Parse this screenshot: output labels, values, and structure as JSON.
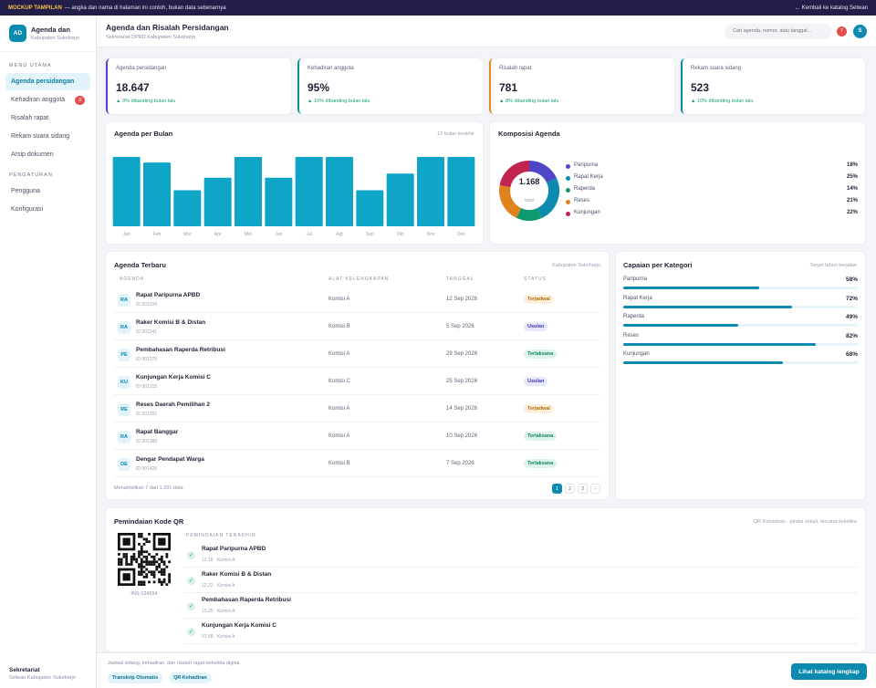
{
  "topbar": {
    "tag": "MOCKUP TAMPILAN",
    "text": "— angka dan nama di halaman ini contoh, bukan data sebenarnya",
    "back": "← Kembali ke katalog Setwan"
  },
  "brand": {
    "logo": "AD",
    "title": "Agenda dan",
    "subtitle": "Kabupaten Sukoharjo"
  },
  "sidebar": {
    "section_main": "MENU UTAMA",
    "items": [
      {
        "label": "Agenda persidangan",
        "active": true
      },
      {
        "label": "Kehadiran anggota",
        "badge": "3"
      },
      {
        "label": "Risalah rapat"
      },
      {
        "label": "Rekam suara sidang"
      },
      {
        "label": "Arsip dokumen"
      }
    ],
    "section_settings": "PENGATURAN",
    "settings": [
      {
        "label": "Pengguna"
      },
      {
        "label": "Konfigurasi"
      }
    ],
    "footer_title": "Sekretariat",
    "footer_sub": "Setwan Kabupaten Sukoharjo"
  },
  "header": {
    "title": "Agenda dan Risalah Persidangan",
    "subtitle": "Sekretariat DPRD Kabupaten Sukoharjo",
    "search_placeholder": "Cari agenda, nomor, atau tanggal...",
    "notif_count": "7",
    "avatar": "S"
  },
  "stats": [
    {
      "label": "Agenda persidangan",
      "value": "18.647",
      "delta": "▲ 9% dibanding bulan lalu",
      "color": "#4f46c8"
    },
    {
      "label": "Kehadiran anggota",
      "value": "95%",
      "delta": "▲ 10% dibanding bulan lalu",
      "color": "#0d9488"
    },
    {
      "label": "Risalah rapat",
      "value": "781",
      "delta": "▲ 8% dibanding bulan lalu",
      "color": "#e58a1f"
    },
    {
      "label": "Rekam suara sidang",
      "value": "523",
      "delta": "▲ 10% dibanding bulan lalu",
      "color": "#0d8ab0"
    }
  ],
  "bar_card": {
    "title": "Agenda per Bulan",
    "subtitle": "12 bulan terakhir"
  },
  "donut_card": {
    "title": "Komposisi Agenda",
    "center_value": "1.168",
    "center_label": "total"
  },
  "chart_data": [
    {
      "type": "bar",
      "title": "Agenda per Bulan",
      "categories": [
        "Jan",
        "Feb",
        "Mar",
        "Apr",
        "Mei",
        "Jun",
        "Jul",
        "Agt",
        "Sep",
        "Okt",
        "Nov",
        "Des"
      ],
      "values": [
        100,
        92,
        52,
        70,
        100,
        70,
        100,
        100,
        52,
        76,
        100,
        100
      ],
      "ylim": [
        0,
        100
      ],
      "grid": false,
      "color": "#0ea5c6"
    },
    {
      "type": "pie",
      "title": "Komposisi Agenda",
      "labels": [
        "Paripurna",
        "Rapat Kerja",
        "Raperda",
        "Reses",
        "Kunjungan"
      ],
      "values": [
        18,
        25,
        14,
        21,
        22
      ],
      "colors": [
        "#4f46c8",
        "#0d8ab0",
        "#0f9a6e",
        "#e0831c",
        "#c0244f"
      ],
      "display": [
        "18%",
        "25%",
        "14%",
        "21%",
        "22%"
      ]
    }
  ],
  "table": {
    "title": "Agenda Terbaru",
    "subtitle": "Kabupaten Sukoharjo",
    "headers": [
      "AGENDA",
      "ALAT KELENGKAPAN",
      "TANGGAL",
      "STATUS"
    ],
    "rows": [
      {
        "ini": "RA",
        "name": "Rapat Paripurna APBD",
        "id": "ID 001204",
        "org": "Komisi A",
        "date": "12 Sep 2026",
        "status": "Terjadwal"
      },
      {
        "ini": "RA",
        "name": "Raker Komisi B & Distan",
        "id": "ID 001241",
        "org": "Komisi B",
        "date": "5 Sep 2026",
        "status": "Usulan"
      },
      {
        "ini": "PE",
        "name": "Pembahasan Raperda Retribusi",
        "id": "ID 001278",
        "org": "Komisi A",
        "date": "29 Sep 2026",
        "status": "Terlaksana"
      },
      {
        "ini": "KU",
        "name": "Kunjungan Kerja Komisi C",
        "id": "ID 001315",
        "org": "Komisi C",
        "date": "25 Sep 2026",
        "status": "Usulan"
      },
      {
        "ini": "RE",
        "name": "Reses Daerah Pemilihan 2",
        "id": "ID 001352",
        "org": "Komisi A",
        "date": "14 Sep 2026",
        "status": "Terjadwal"
      },
      {
        "ini": "RA",
        "name": "Rapat Banggar",
        "id": "ID 001389",
        "org": "Komisi A",
        "date": "10 Sep 2026",
        "status": "Terlaksana"
      },
      {
        "ini": "DE",
        "name": "Dengar Pendapat Warga",
        "id": "ID 001426",
        "org": "Komisi B",
        "date": "7 Sep 2026",
        "status": "Terlaksana"
      }
    ],
    "footer": "Menampilkan 7 dari 1.391 data",
    "pages": [
      "1",
      "2",
      "3",
      "›"
    ],
    "status_colors": {
      "Terjadwal": [
        "#fdf0dc",
        "#b76a0c"
      ],
      "Usulan": [
        "#e6e8fb",
        "#3f3aa8"
      ],
      "Terlaksana": [
        "#dcf4ea",
        "#14855f"
      ]
    }
  },
  "progress": {
    "title": "Capaian per Kategori",
    "subtitle": "Target tahun berjalan",
    "items": [
      {
        "label": "Paripurna",
        "pct_label": "58%",
        "value": 0.58
      },
      {
        "label": "Rapat Kerja",
        "pct_label": "72%",
        "value": 0.72
      },
      {
        "label": "Raperda",
        "pct_label": "49%",
        "value": 0.49
      },
      {
        "label": "Reses",
        "pct_label": "82%",
        "value": 0.82
      },
      {
        "label": "Kunjungan",
        "pct_label": "68%",
        "value": 0.68
      }
    ]
  },
  "qr": {
    "title": "Pemindaian Kode QR",
    "subtitle": "QR Kehadiran - pindai sekali, tercatat seketika",
    "code": "INS-124554",
    "recent_label": "PEMINDAIAN TERAKHIR",
    "scans": [
      {
        "name": "Rapat Paripurna APBD",
        "meta": "12.18 · Komisi A"
      },
      {
        "name": "Raker Komisi B & Distan",
        "meta": "12.22 · Komisi A"
      },
      {
        "name": "Pembahasan Raperda Retribusi",
        "meta": "13.25 · Komisi A"
      },
      {
        "name": "Kunjungan Kerja Komisi C",
        "meta": "07.58 · Komisi A"
      }
    ]
  },
  "footer": {
    "text": "Jadwal sidang, kehadiran, dan risalah rapat terkelola digital.",
    "chips": [
      "Transkrip Otomatis",
      "QR Kehadiran"
    ],
    "cta": "Lihat katalog lengkap"
  }
}
